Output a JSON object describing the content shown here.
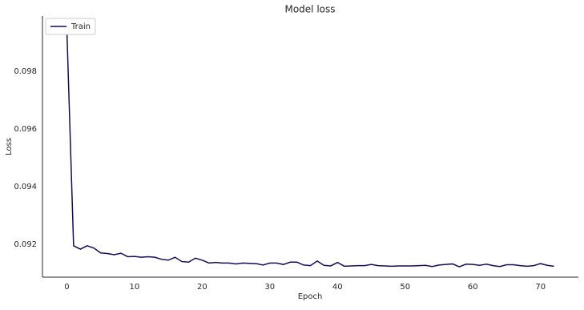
{
  "chart_data": {
    "type": "line",
    "title": "Model loss",
    "x_label": "Epoch",
    "y_label": "Loss",
    "x": [
      0,
      1,
      2,
      3,
      4,
      5,
      6,
      7,
      8,
      9,
      10,
      11,
      12,
      13,
      14,
      15,
      16,
      17,
      18,
      19,
      20,
      21,
      22,
      23,
      24,
      25,
      26,
      27,
      28,
      29,
      30,
      31,
      32,
      33,
      34,
      35,
      36,
      37,
      38,
      39,
      40,
      41,
      42,
      43,
      44,
      45,
      46,
      47,
      48,
      49,
      50,
      51,
      52,
      53,
      54,
      55,
      56,
      57,
      58,
      59,
      60,
      61,
      62,
      63,
      64,
      65,
      66,
      67,
      68,
      69,
      70,
      71,
      72
    ],
    "series": [
      {
        "name": "Train",
        "color": "#140c5a",
        "values": [
          0.0995,
          0.09195,
          0.09183,
          0.09195,
          0.09187,
          0.0917,
          0.09168,
          0.09164,
          0.09169,
          0.09157,
          0.09158,
          0.09155,
          0.09157,
          0.09155,
          0.09148,
          0.09145,
          0.09155,
          0.0914,
          0.09138,
          0.09152,
          0.09145,
          0.09135,
          0.09137,
          0.09135,
          0.09135,
          0.09132,
          0.09135,
          0.09134,
          0.09133,
          0.09128,
          0.09135,
          0.09135,
          0.0913,
          0.09138,
          0.09138,
          0.09128,
          0.09126,
          0.09142,
          0.09127,
          0.09125,
          0.09137,
          0.09124,
          0.09125,
          0.09126,
          0.09126,
          0.0913,
          0.09126,
          0.09125,
          0.09124,
          0.09125,
          0.09125,
          0.09125,
          0.09126,
          0.09127,
          0.09123,
          0.09128,
          0.0913,
          0.09132,
          0.09122,
          0.09131,
          0.0913,
          0.09127,
          0.09131,
          0.09126,
          0.09123,
          0.09129,
          0.09129,
          0.09126,
          0.09124,
          0.09126,
          0.09133,
          0.09127,
          0.09124
        ]
      }
    ],
    "xlim": [
      -3.6,
      75.6
    ],
    "xticks": [
      0,
      10,
      20,
      30,
      40,
      50,
      60,
      70
    ],
    "ylim": [
      0.09086,
      0.09992
    ],
    "yticks": [
      0.092,
      0.094,
      0.096,
      0.098
    ],
    "grid": false,
    "legend": "upper left"
  }
}
